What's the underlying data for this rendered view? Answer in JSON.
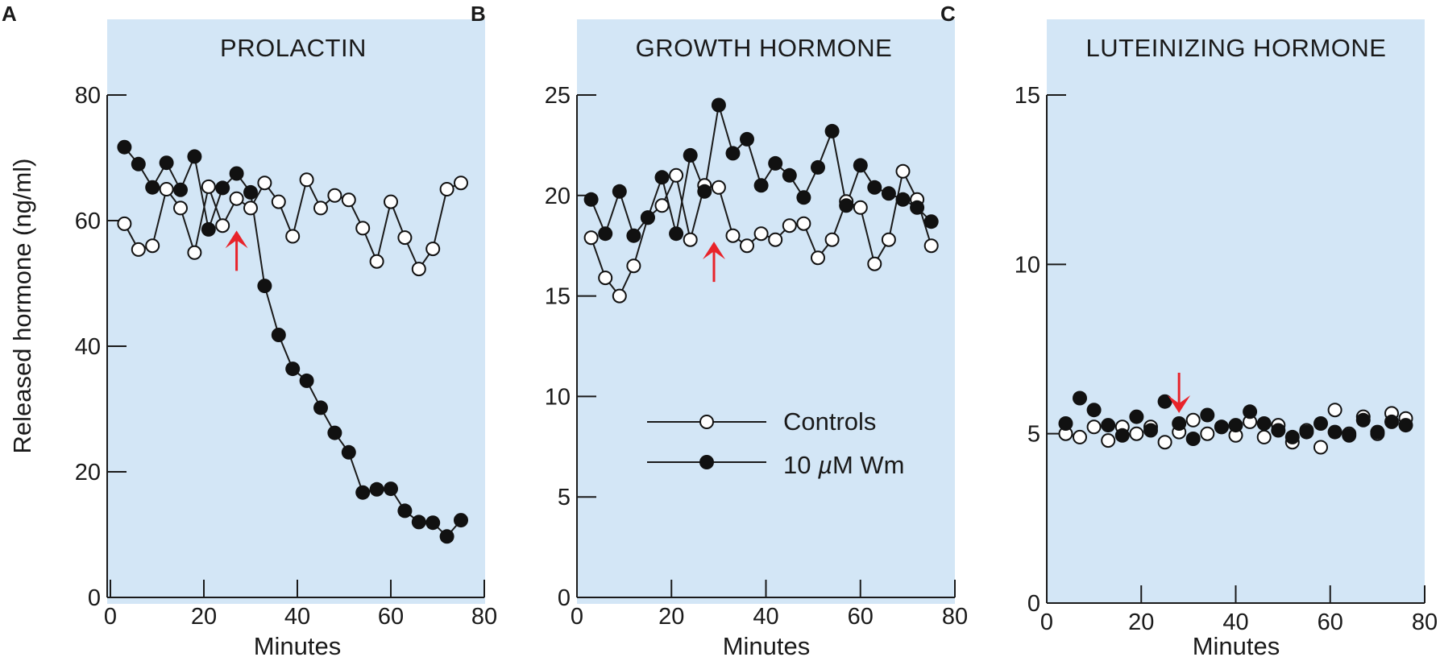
{
  "y_axis_label": "Released hormone (ng/ml)",
  "colors": {
    "panel_background": "#d3e6f6",
    "marker": "#111111",
    "open_fill": "#ffffff",
    "arrow": "#e8232a"
  },
  "legend": {
    "controls_label": "Controls",
    "treated_label_prefix": "10 ",
    "treated_label_mu": "µ",
    "treated_label_suffix": "M Wm"
  },
  "chart_data": [
    {
      "type": "line",
      "panel": "A",
      "title": "PROLACTIN",
      "xlabel": "Minutes",
      "ylabel": "Released hormone (ng/ml)",
      "xlim": [
        0,
        80
      ],
      "ylim": [
        0,
        80
      ],
      "xticks": [
        0,
        20,
        40,
        60,
        80
      ],
      "yticks": [
        0,
        20,
        40,
        60,
        80
      ],
      "arrow": {
        "x": 27,
        "y": 52,
        "direction": "up"
      },
      "series": [
        {
          "name": "Controls",
          "marker": "open",
          "connected": true,
          "x": [
            3,
            6,
            9,
            12,
            15,
            18,
            21,
            24,
            27,
            30,
            33,
            36,
            39,
            42,
            45,
            48,
            51,
            54,
            57,
            60,
            63,
            66,
            69,
            72,
            75
          ],
          "y": [
            59.5,
            55.4,
            56,
            65,
            62,
            54.9,
            65.4,
            59.2,
            63.5,
            62,
            66,
            63,
            57.5,
            66.5,
            62,
            64,
            63.3,
            58.8,
            53.5,
            63,
            57.3,
            52.3,
            55.5,
            65,
            66
          ]
        },
        {
          "name": "10 µM Wm",
          "marker": "filled",
          "connected": true,
          "x": [
            3,
            6,
            9,
            12,
            15,
            18,
            21,
            24,
            27,
            30,
            33,
            36,
            39,
            42,
            45,
            48,
            51,
            54,
            57,
            60,
            63,
            66,
            69,
            72,
            75
          ],
          "y": [
            71.7,
            69,
            65.3,
            69.2,
            64.9,
            70.2,
            58.6,
            65.2,
            67.5,
            64.5,
            49.6,
            41.8,
            36.4,
            34.5,
            30.2,
            26.2,
            23.1,
            16.7,
            17.2,
            17.3,
            13.8,
            12,
            11.9,
            9.7,
            12.3
          ]
        }
      ]
    },
    {
      "type": "line",
      "panel": "B",
      "title": "GROWTH HORMONE",
      "xlabel": "Minutes",
      "ylabel": "",
      "xlim": [
        0,
        80
      ],
      "ylim": [
        0,
        25
      ],
      "xticks": [
        0,
        20,
        40,
        60,
        80
      ],
      "yticks": [
        0,
        5,
        10,
        15,
        20,
        25
      ],
      "arrow": {
        "x": 29,
        "y": 15.7,
        "direction": "up"
      },
      "series": [
        {
          "name": "Controls",
          "marker": "open",
          "connected": true,
          "x": [
            3,
            6,
            9,
            12,
            15,
            18,
            21,
            24,
            27,
            30,
            33,
            36,
            39,
            42,
            45,
            48,
            51,
            54,
            57,
            60,
            63,
            66,
            69,
            72,
            75
          ],
          "y": [
            17.9,
            15.9,
            15,
            16.5,
            18.9,
            19.5,
            21,
            17.8,
            20.5,
            20.4,
            18,
            17.5,
            18.1,
            17.8,
            18.5,
            18.6,
            16.9,
            17.8,
            19.7,
            19.4,
            16.6,
            17.8,
            21.2,
            19.8,
            17.5
          ]
        },
        {
          "name": "10 µM Wm",
          "marker": "filled",
          "connected": true,
          "x": [
            3,
            6,
            9,
            12,
            15,
            18,
            21,
            24,
            27,
            30,
            33,
            36,
            39,
            42,
            45,
            48,
            51,
            54,
            57,
            60,
            63,
            66,
            69,
            72,
            75
          ],
          "y": [
            19.8,
            18.1,
            20.2,
            18,
            18.9,
            20.9,
            18.1,
            22,
            20.2,
            24.5,
            22.1,
            22.8,
            20.5,
            21.6,
            21,
            19.9,
            21.4,
            23.2,
            19.5,
            21.5,
            20.4,
            20.1,
            19.8,
            19.4,
            18.7
          ]
        }
      ],
      "legend_position": "bottom-center"
    },
    {
      "type": "scatter",
      "panel": "C",
      "title": "LUTEINIZING HORMONE",
      "xlabel": "Minutes",
      "ylabel": "",
      "xlim": [
        0,
        80
      ],
      "ylim": [
        0,
        15
      ],
      "xticks": [
        0,
        20,
        40,
        60,
        80
      ],
      "yticks": [
        0,
        5,
        10,
        15
      ],
      "arrow": {
        "x": 28,
        "y": 6.8,
        "direction": "down"
      },
      "series": [
        {
          "name": "Controls",
          "marker": "open",
          "connected": false,
          "x": [
            4,
            7,
            10,
            13,
            16,
            19,
            22,
            25,
            28,
            31,
            34,
            37,
            40,
            43,
            46,
            49,
            52,
            55,
            58,
            61,
            64,
            67,
            70,
            73,
            76
          ],
          "y": [
            5,
            4.9,
            5.2,
            4.8,
            5.2,
            5,
            5.2,
            4.75,
            5.05,
            5.4,
            5,
            5.2,
            4.95,
            5.35,
            4.9,
            5.25,
            4.75,
            5.1,
            4.6,
            5.7,
            5,
            5.5,
            5,
            5.6,
            5.45
          ]
        },
        {
          "name": "10 µM Wm",
          "marker": "filled",
          "connected": false,
          "x": [
            4,
            7,
            10,
            13,
            16,
            19,
            22,
            25,
            28,
            31,
            34,
            37,
            40,
            43,
            46,
            49,
            52,
            55,
            58,
            61,
            64,
            67,
            70,
            73,
            76
          ],
          "y": [
            5.3,
            6.05,
            5.7,
            5.25,
            4.95,
            5.5,
            5.1,
            5.95,
            5.3,
            4.85,
            5.55,
            5.2,
            5.25,
            5.65,
            5.3,
            5.1,
            4.9,
            5.05,
            5.3,
            5.05,
            4.95,
            5.4,
            5.05,
            5.35,
            5.25
          ]
        }
      ]
    }
  ]
}
